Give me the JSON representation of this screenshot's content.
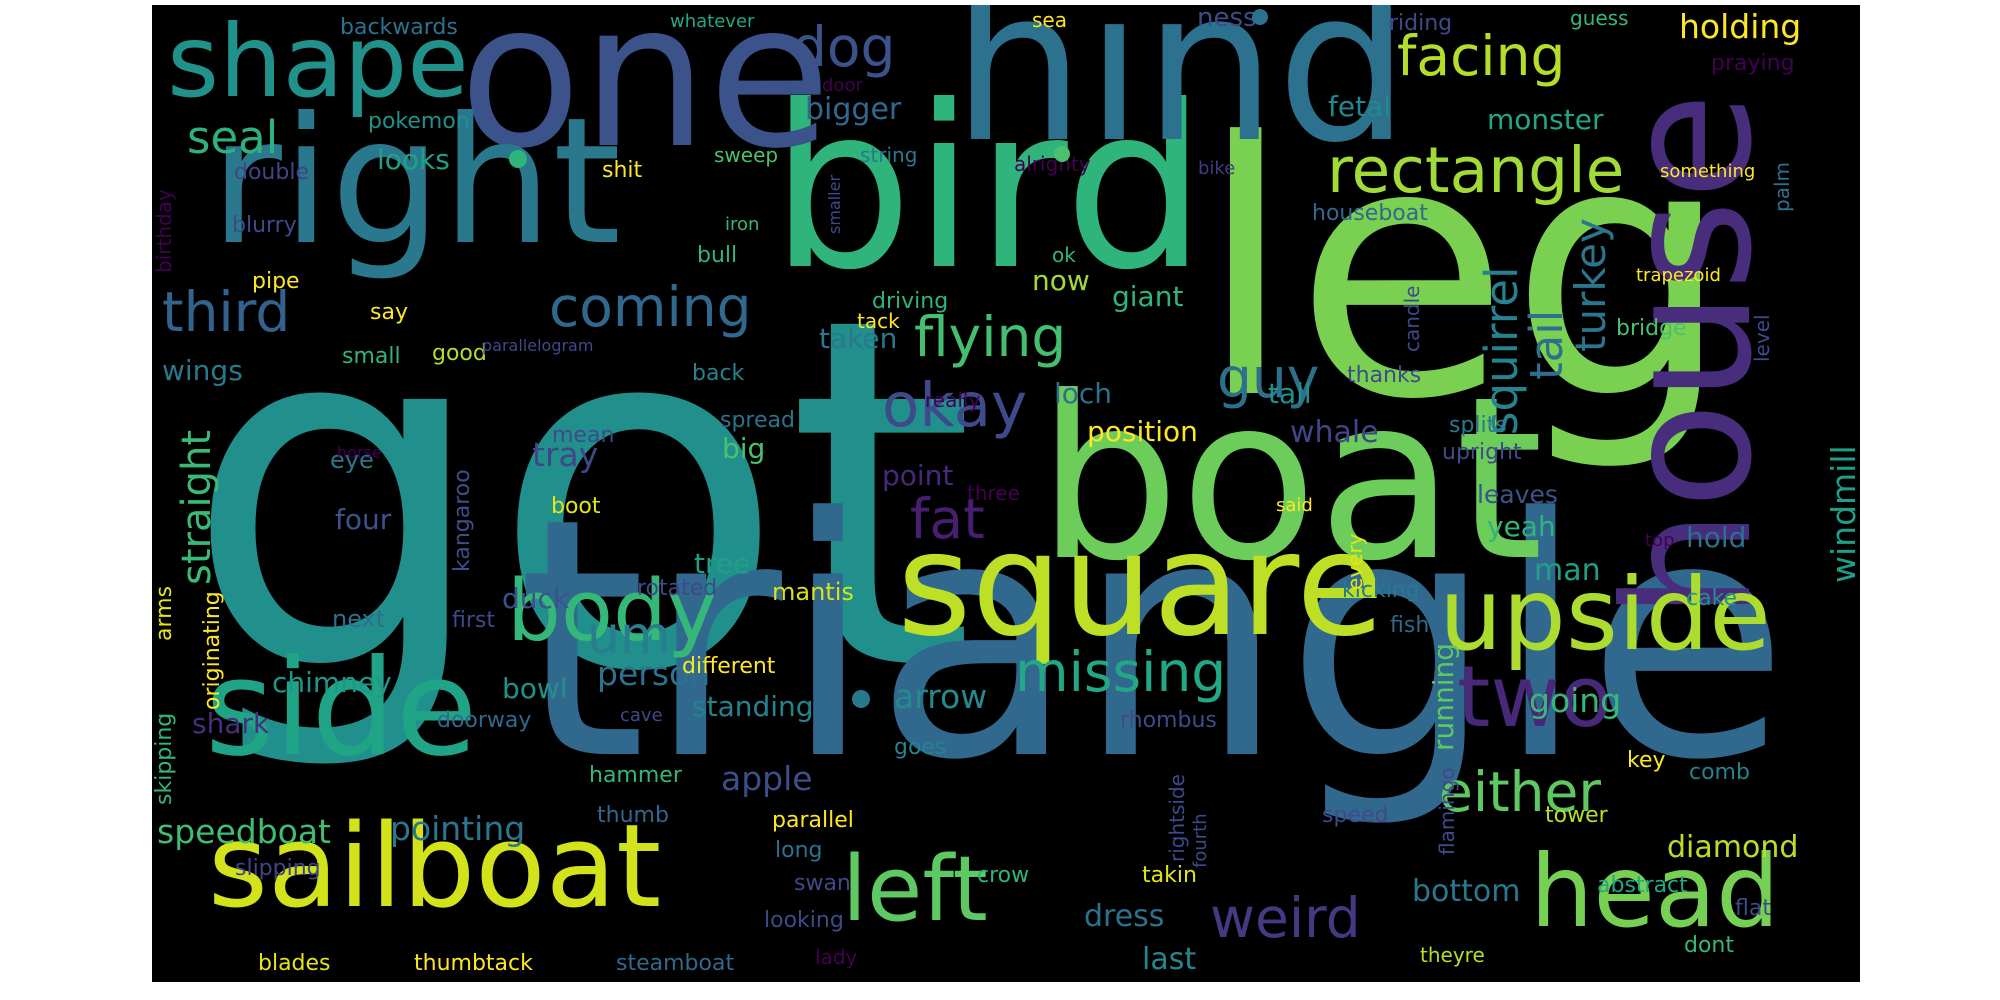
{
  "words": [
    {
      "text": "got",
      "color": "#21908d"
    },
    {
      "text": "triangle",
      "color": "#31688e"
    },
    {
      "text": "leg",
      "color": "#7ad151"
    },
    {
      "text": "boat",
      "color": "#6ccd5a"
    },
    {
      "text": "bird",
      "color": "#2fb47c"
    },
    {
      "text": "hind",
      "color": "#2c728e"
    },
    {
      "text": "one",
      "color": "#3b528b"
    },
    {
      "text": "right",
      "color": "#2a788e"
    },
    {
      "text": "house",
      "color": "#472d7b"
    },
    {
      "text": "square",
      "color": "#bddf26"
    },
    {
      "text": "side",
      "color": "#20a486"
    },
    {
      "text": "sailboat",
      "color": "#d2e21b"
    },
    {
      "text": "upside",
      "color": "#addc30"
    },
    {
      "text": "head",
      "color": "#75d054"
    },
    {
      "text": "shape",
      "color": "#21918c"
    },
    {
      "text": "body",
      "color": "#35b779"
    },
    {
      "text": "left",
      "color": "#5ec962"
    },
    {
      "text": "two",
      "color": "#482878"
    },
    {
      "text": "facing",
      "color": "#b5de2b"
    },
    {
      "text": "rectangle",
      "color": "#a2da37"
    },
    {
      "text": "okay",
      "color": "#3e4a89"
    },
    {
      "text": "either",
      "color": "#5ec962"
    },
    {
      "text": "missing",
      "color": "#22a884"
    },
    {
      "text": "weird",
      "color": "#443983"
    },
    {
      "text": "third",
      "color": "#33638d"
    },
    {
      "text": "coming",
      "color": "#31688e"
    },
    {
      "text": "flying",
      "color": "#44bf70"
    },
    {
      "text": "um",
      "color": "#287d8e"
    },
    {
      "text": "fat",
      "color": "#481f70"
    },
    {
      "text": "guy",
      "color": "#2d708e"
    },
    {
      "text": "dog",
      "color": "#3b528b"
    },
    {
      "text": "seal",
      "color": "#2db27d"
    },
    {
      "text": "squirrel",
      "color": "#26828e"
    },
    {
      "text": "tail",
      "color": "#2e6f8e"
    },
    {
      "text": "turkey",
      "color": "#2a768e"
    },
    {
      "text": "straight",
      "color": "#3aba76"
    },
    {
      "text": "speedboat",
      "color": "#40bd72"
    },
    {
      "text": "pointing",
      "color": "#2a768e"
    },
    {
      "text": "holding",
      "color": "#fde725"
    },
    {
      "text": "windmill",
      "color": "#1f9e89"
    },
    {
      "text": "arrow",
      "color": "#238a8d"
    },
    {
      "text": "apple",
      "color": "#3d4e8a"
    },
    {
      "text": "person",
      "color": "#2c728e"
    },
    {
      "text": "going",
      "color": "#37b878"
    },
    {
      "text": "diamond",
      "color": "#bade28"
    },
    {
      "text": "tray",
      "color": "#404688"
    },
    {
      "text": "bigger",
      "color": "#31688e"
    },
    {
      "text": "monster",
      "color": "#22a785"
    },
    {
      "text": "fetal",
      "color": "#23888e"
    },
    {
      "text": "looks",
      "color": "#1fa188"
    },
    {
      "text": "chimney",
      "color": "#1f968b"
    },
    {
      "text": "bottom",
      "color": "#2a788e"
    },
    {
      "text": "dress",
      "color": "#2c728e"
    },
    {
      "text": "last",
      "color": "#24868e"
    },
    {
      "text": "man",
      "color": "#1f9f88"
    },
    {
      "text": "whale",
      "color": "#414487"
    },
    {
      "text": "position",
      "color": "#fde725"
    },
    {
      "text": "loch",
      "color": "#2d708e"
    },
    {
      "text": "tall",
      "color": "#21918c"
    },
    {
      "text": "giant",
      "color": "#2fb47c"
    },
    {
      "text": "taken",
      "color": "#2a788e"
    },
    {
      "text": "now",
      "color": "#a0da39"
    },
    {
      "text": "wings",
      "color": "#2a788e"
    },
    {
      "text": "big",
      "color": "#4ac16d"
    },
    {
      "text": "point",
      "color": "#482878"
    },
    {
      "text": "four",
      "color": "#3b528b"
    },
    {
      "text": "tree",
      "color": "#1f9f88"
    },
    {
      "text": "duck",
      "color": "#3b528b"
    },
    {
      "text": "bowl",
      "color": "#21918c"
    },
    {
      "text": "standing",
      "color": "#25838e"
    },
    {
      "text": "running",
      "color": "#5cc863"
    },
    {
      "text": "shark",
      "color": "#472f7d"
    },
    {
      "text": "hold",
      "color": "#2e6e8e"
    },
    {
      "text": "yeah",
      "color": "#2fb47c"
    },
    {
      "text": "leaves",
      "color": "#3b528b"
    },
    {
      "text": "mantis",
      "color": "#d8e219"
    },
    {
      "text": "rotated",
      "color": "#3e4989"
    },
    {
      "text": "next",
      "color": "#2d708e"
    },
    {
      "text": "first",
      "color": "#3e4a89"
    },
    {
      "text": "kangaroo",
      "color": "#3d4e8a"
    },
    {
      "text": "eye",
      "color": "#2a788e"
    },
    {
      "text": "mean",
      "color": "#3e4a89"
    },
    {
      "text": "spread",
      "color": "#2c728e"
    },
    {
      "text": "boot",
      "color": "#e5e419"
    },
    {
      "text": "back",
      "color": "#26828e"
    },
    {
      "text": "good",
      "color": "#b5de2b"
    },
    {
      "text": "small",
      "color": "#31b57b"
    },
    {
      "text": "say",
      "color": "#fde725"
    },
    {
      "text": "pipe",
      "color": "#fde725"
    },
    {
      "text": "blurry",
      "color": "#3e4a89"
    },
    {
      "text": "double",
      "color": "#414487"
    },
    {
      "text": "pokemon",
      "color": "#21918c"
    },
    {
      "text": "backwards",
      "color": "#2c728e"
    },
    {
      "text": "whatever",
      "color": "#22a884"
    },
    {
      "text": "door",
      "color": "#440154"
    },
    {
      "text": "sea",
      "color": "#fde725"
    },
    {
      "text": "ness",
      "color": "#3e4a89"
    },
    {
      "text": "riding",
      "color": "#3e4a89"
    },
    {
      "text": "guess",
      "color": "#35b779"
    },
    {
      "text": "praying",
      "color": "#440154"
    },
    {
      "text": "string",
      "color": "#2a788e"
    },
    {
      "text": "sweep",
      "color": "#4ac16d"
    },
    {
      "text": "shit",
      "color": "#fde725"
    },
    {
      "text": "alrighty",
      "color": "#440154"
    },
    {
      "text": "bike",
      "color": "#443983"
    },
    {
      "text": "something",
      "color": "#fde725"
    },
    {
      "text": "iron",
      "color": "#35b779"
    },
    {
      "text": "bull",
      "color": "#2fb47c"
    },
    {
      "text": "ok",
      "color": "#31b57b"
    },
    {
      "text": "houseboat",
      "color": "#31688e"
    },
    {
      "text": "driving",
      "color": "#2fb47c"
    },
    {
      "text": "tack",
      "color": "#fde725"
    },
    {
      "text": "trapezoid",
      "color": "#fde725"
    },
    {
      "text": "bridge",
      "color": "#4ac16d"
    },
    {
      "text": "thanks",
      "color": "#3e4a89"
    },
    {
      "text": "splits",
      "color": "#2a788e"
    },
    {
      "text": "upright",
      "color": "#3e4a89"
    },
    {
      "text": "really",
      "color": "#440154"
    },
    {
      "text": "three",
      "color": "#440154"
    },
    {
      "text": "said",
      "color": "#fde725"
    },
    {
      "text": "top",
      "color": "#440154"
    },
    {
      "text": "kicking",
      "color": "#2a788e"
    },
    {
      "text": "every",
      "color": "#e5e419"
    },
    {
      "text": "fish",
      "color": "#31688e"
    },
    {
      "text": "cake",
      "color": "#21918c"
    },
    {
      "text": "different",
      "color": "#fde725"
    },
    {
      "text": "cave",
      "color": "#3e4a89"
    },
    {
      "text": "doorway",
      "color": "#31688e"
    },
    {
      "text": "rhombus",
      "color": "#3e4a89"
    },
    {
      "text": "goes",
      "color": "#26828e"
    },
    {
      "text": "hammer",
      "color": "#35b779"
    },
    {
      "text": "thumb",
      "color": "#31688e"
    },
    {
      "text": "parallel",
      "color": "#fde725"
    },
    {
      "text": "long",
      "color": "#2c728e"
    },
    {
      "text": "speed",
      "color": "#3e4a89"
    },
    {
      "text": "tower",
      "color": "#b5de2b"
    },
    {
      "text": "key",
      "color": "#fde725"
    },
    {
      "text": "comb",
      "color": "#25838e"
    },
    {
      "text": "flat",
      "color": "#3e4a89"
    },
    {
      "text": "abstract",
      "color": "#22a884"
    },
    {
      "text": "crow",
      "color": "#2fb47c"
    },
    {
      "text": "takin",
      "color": "#e5e419"
    },
    {
      "text": "swan",
      "color": "#3e4a89"
    },
    {
      "text": "looking",
      "color": "#3e4a89"
    },
    {
      "text": "slipping",
      "color": "#414487"
    },
    {
      "text": "blades",
      "color": "#e5e419"
    },
    {
      "text": "thumbtack",
      "color": "#fde725"
    },
    {
      "text": "steamboat",
      "color": "#31688e"
    },
    {
      "text": "lady",
      "color": "#440154"
    },
    {
      "text": "theyre",
      "color": "#b5de2b"
    },
    {
      "text": "dont",
      "color": "#35b779"
    },
    {
      "text": "flamingo",
      "color": "#3e4a89"
    },
    {
      "text": "fourth",
      "color": "#3e4a89"
    },
    {
      "text": "rightside",
      "color": "#3e4a89"
    },
    {
      "text": "skipping",
      "color": "#35b779"
    },
    {
      "text": "arms",
      "color": "#e5e419"
    },
    {
      "text": "originating",
      "color": "#fde725"
    },
    {
      "text": "birthday",
      "color": "#440154"
    },
    {
      "text": "smaller",
      "color": "#3e4a89"
    },
    {
      "text": "horse",
      "color": "#440154"
    },
    {
      "text": "candle",
      "color": "#3e4a89"
    },
    {
      "text": "level",
      "color": "#3e4a89"
    },
    {
      "text": "palm",
      "color": "#2c728e"
    },
    {
      "text": "parallelogram",
      "color": "#3e4a89"
    }
  ],
  "dots": [
    {
      "color": "#2fb47c"
    },
    {
      "color": "#2c728e"
    },
    {
      "color": "#2a788e"
    },
    {
      "color": "#4ac16d"
    }
  ]
}
